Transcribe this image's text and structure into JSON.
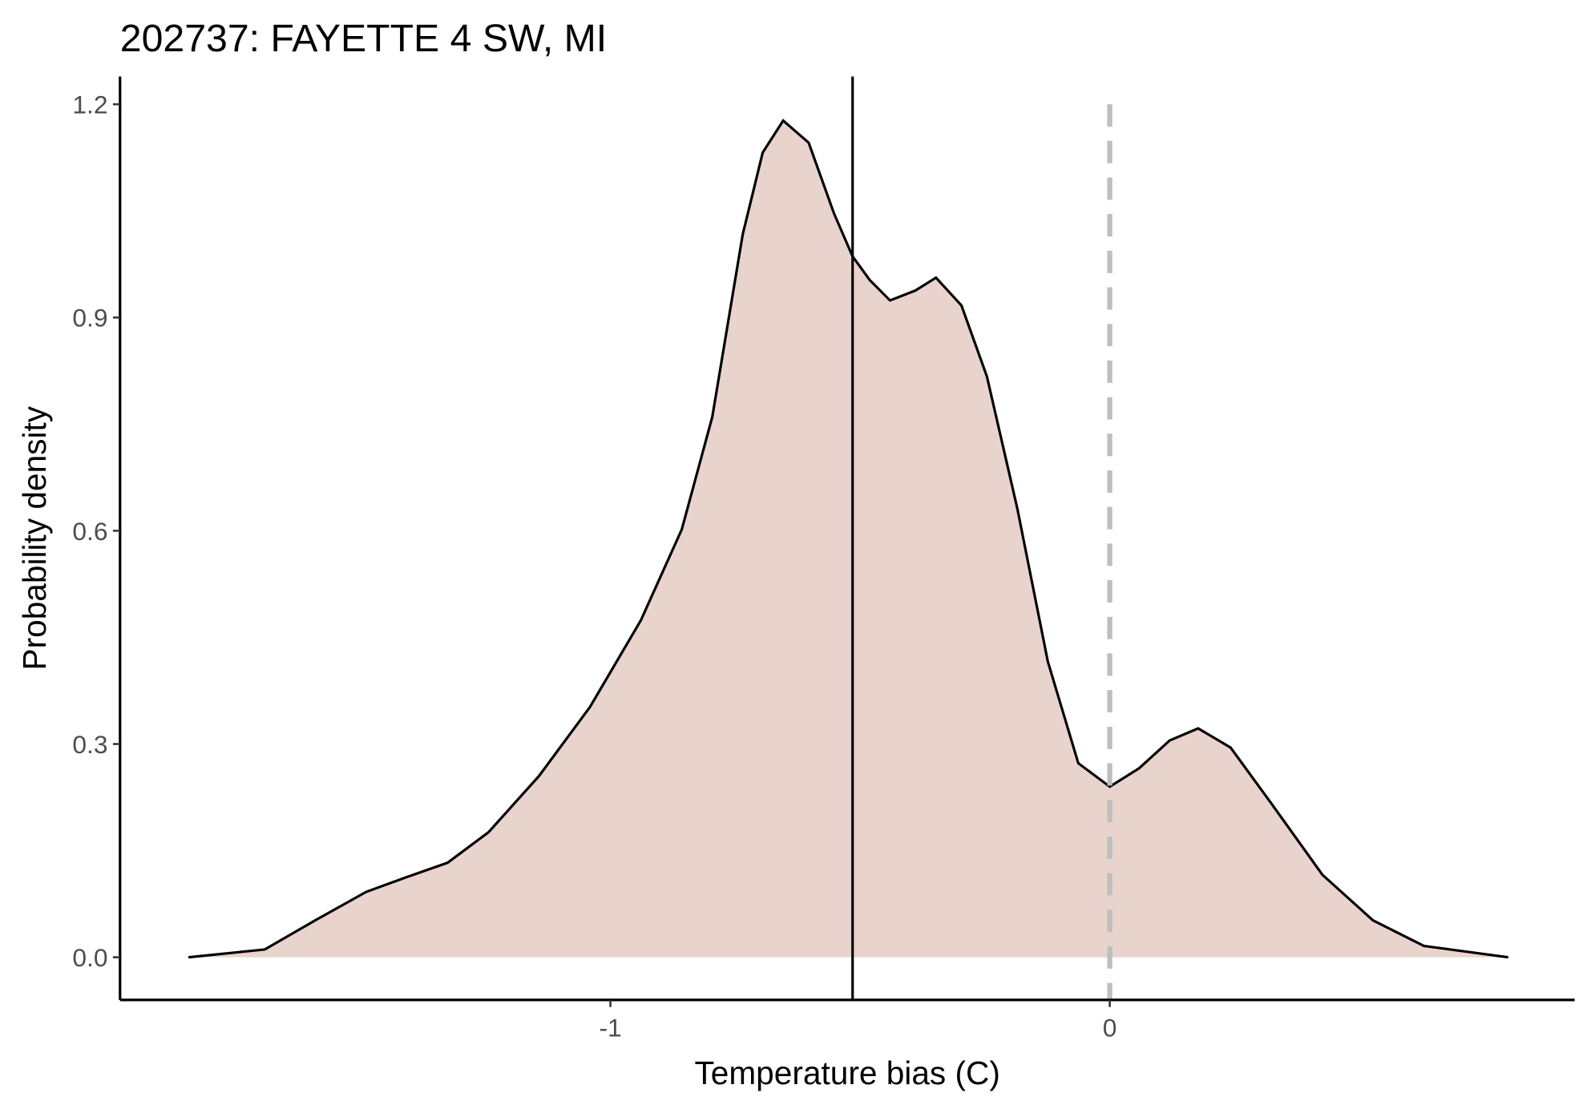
{
  "chart_data": {
    "type": "area",
    "title": "202737: FAYETTE 4 SW, MI",
    "x_label": "Temperature bias (C)",
    "y_label": "Probability density",
    "x": [
      -1.845,
      -1.692,
      -1.591,
      -1.489,
      -1.407,
      -1.326,
      -1.244,
      -1.143,
      -1.041,
      -0.939,
      -0.857,
      -0.796,
      -0.735,
      -0.695,
      -0.654,
      -0.603,
      -0.552,
      -0.515,
      -0.481,
      -0.44,
      -0.389,
      -0.348,
      -0.297,
      -0.246,
      -0.185,
      -0.124,
      -0.063,
      0,
      0.059,
      0.12,
      0.177,
      0.242,
      0.324,
      0.426,
      0.527,
      0.629,
      0.798
    ],
    "values": [
      0,
      0.011,
      0.052,
      0.092,
      0.113,
      0.133,
      0.176,
      0.255,
      0.352,
      0.474,
      0.602,
      0.76,
      1.017,
      1.132,
      1.177,
      1.146,
      1.046,
      0.986,
      0.953,
      0.924,
      0.938,
      0.956,
      0.917,
      0.817,
      0.631,
      0.416,
      0.273,
      0.24,
      0.266,
      0.305,
      0.322,
      0.295,
      0.216,
      0.116,
      0.052,
      0.016,
      0
    ],
    "color": "#000000",
    "fill": "#e8d4cd",
    "vlines": [
      {
        "x": -0.515,
        "style": "solid",
        "color": "#000000"
      },
      {
        "x": 0,
        "style": "dashed",
        "color": "#bebebe"
      }
    ],
    "xlim": [
      -1.982,
      0.931
    ],
    "ylim": [
      -0.06,
      1.239
    ],
    "xticks": [
      -1,
      0
    ],
    "yticks": [
      {
        "value": 0,
        "label": "0.0"
      },
      0.3,
      0.6,
      0.9,
      1.2
    ],
    "grid": false
  }
}
